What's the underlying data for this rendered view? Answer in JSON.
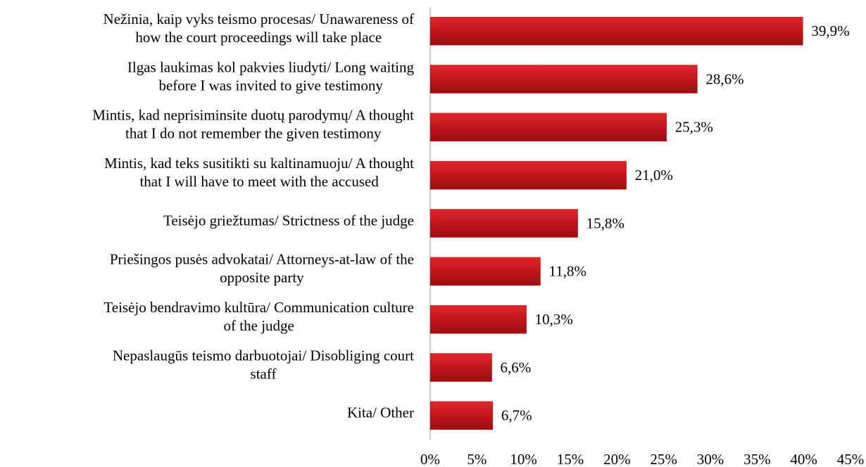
{
  "chart_data": {
    "type": "bar",
    "orientation": "horizontal",
    "categories": [
      [
        "Nežinia, kaip vyks teismo procesas/ Unawareness of",
        "how the court proceedings will take place"
      ],
      [
        "Ilgas laukimas kol pakvies liudyti/ Long waiting",
        "before I was invited to give testimony"
      ],
      [
        "Mintis, kad neprisiminsite duotų parodymų/ A thought",
        "that I do not remember the given testimony"
      ],
      [
        "Mintis, kad teks susitikti su kaltinamuoju/ A thought",
        "that I will have to meet with the accused"
      ],
      [
        "Teisėjo griežtumas/ Strictness of the judge"
      ],
      [
        "Priešingos pusės advokatai/ Attorneys-at-law of the",
        "opposite party"
      ],
      [
        "Teisėjo bendravimo kultūra/ Communication culture",
        "of the judge"
      ],
      [
        "Nepaslaugūs teismo darbuotojai/ Disobliging court",
        "staff"
      ],
      [
        "Kita/ Other"
      ]
    ],
    "values": [
      39.9,
      28.6,
      25.3,
      21.0,
      15.8,
      11.8,
      10.3,
      6.6,
      6.7
    ],
    "value_labels": [
      "39,9%",
      "28,6%",
      "25,3%",
      "21,0%",
      "15,8%",
      "11,8%",
      "10,3%",
      "6,6%",
      "6,7%"
    ],
    "color": "#c0161c",
    "xlim": [
      0,
      45
    ],
    "xticks": [
      {
        "value": 0,
        "label": "0%"
      },
      {
        "value": 5,
        "label": "5%"
      },
      {
        "value": 10,
        "label": "10%"
      },
      {
        "value": 15,
        "label": "15%"
      },
      {
        "value": 20,
        "label": "20%"
      },
      {
        "value": 25,
        "label": "25%"
      },
      {
        "value": 30,
        "label": "30%"
      },
      {
        "value": 35,
        "label": "35%"
      },
      {
        "value": 40,
        "label": "40%"
      },
      {
        "value": 45,
        "label": "45%"
      }
    ],
    "grid": false
  }
}
